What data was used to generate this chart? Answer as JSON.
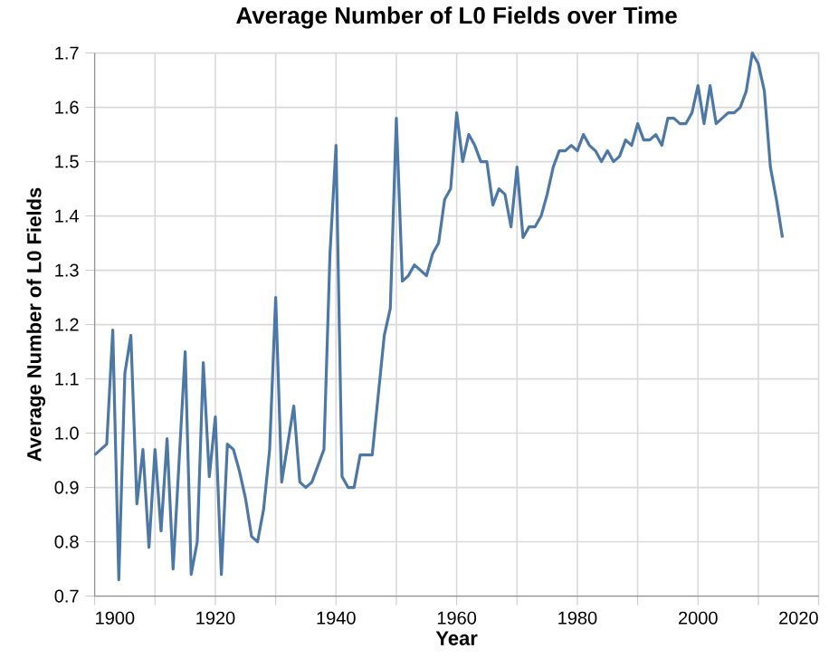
{
  "chart_data": {
    "type": "line",
    "title": "Average Number of L0 Fields over Time",
    "xlabel": "Year",
    "ylabel": "Average Number of L0 Fields",
    "x": [
      1900,
      1901,
      1902,
      1903,
      1904,
      1905,
      1906,
      1907,
      1908,
      1909,
      1910,
      1911,
      1912,
      1913,
      1914,
      1915,
      1916,
      1917,
      1918,
      1919,
      1920,
      1921,
      1922,
      1923,
      1924,
      1925,
      1926,
      1927,
      1928,
      1929,
      1930,
      1931,
      1932,
      1933,
      1934,
      1935,
      1936,
      1937,
      1938,
      1939,
      1940,
      1941,
      1942,
      1943,
      1944,
      1945,
      1946,
      1947,
      1948,
      1949,
      1950,
      1951,
      1952,
      1953,
      1954,
      1955,
      1956,
      1957,
      1958,
      1959,
      1960,
      1961,
      1962,
      1963,
      1964,
      1965,
      1966,
      1967,
      1968,
      1969,
      1970,
      1971,
      1972,
      1973,
      1974,
      1975,
      1976,
      1977,
      1978,
      1979,
      1980,
      1981,
      1982,
      1983,
      1984,
      1985,
      1986,
      1987,
      1988,
      1989,
      1990,
      1991,
      1992,
      1993,
      1994,
      1995,
      1996,
      1997,
      1998,
      1999,
      2000,
      2001,
      2002,
      2003,
      2004,
      2005,
      2006,
      2007,
      2008,
      2009,
      2010,
      2011,
      2012,
      2013,
      2014
    ],
    "series": [
      {
        "color": "#4c78a8",
        "values": [
          0.96,
          0.97,
          0.98,
          1.19,
          0.73,
          1.11,
          1.18,
          0.87,
          0.97,
          0.79,
          0.97,
          0.82,
          0.99,
          0.75,
          0.95,
          1.15,
          0.74,
          0.8,
          1.13,
          0.92,
          1.03,
          0.74,
          0.98,
          0.97,
          0.93,
          0.88,
          0.81,
          0.8,
          0.86,
          0.97,
          1.25,
          0.91,
          0.98,
          1.05,
          0.91,
          0.9,
          0.91,
          0.94,
          0.97,
          1.33,
          1.53,
          0.92,
          0.9,
          0.9,
          0.96,
          0.96,
          0.96,
          1.07,
          1.18,
          1.23,
          1.58,
          1.28,
          1.29,
          1.31,
          1.3,
          1.29,
          1.33,
          1.35,
          1.43,
          1.45,
          1.59,
          1.5,
          1.55,
          1.53,
          1.5,
          1.5,
          1.42,
          1.45,
          1.44,
          1.38,
          1.49,
          1.36,
          1.38,
          1.38,
          1.4,
          1.44,
          1.49,
          1.52,
          1.52,
          1.53,
          1.52,
          1.55,
          1.53,
          1.52,
          1.5,
          1.52,
          1.5,
          1.51,
          1.54,
          1.53,
          1.57,
          1.54,
          1.54,
          1.55,
          1.53,
          1.58,
          1.58,
          1.57,
          1.57,
          1.59,
          1.64,
          1.57,
          1.64,
          1.57,
          1.58,
          1.59,
          1.59,
          1.6,
          1.63,
          1.7,
          1.68,
          1.63,
          1.49,
          1.43,
          1.36
        ]
      }
    ],
    "xlim": [
      1900,
      2020
    ],
    "xticks": [
      1900,
      {
        "value": 1910,
        "label": null
      },
      1920,
      {
        "value": 1930,
        "label": null
      },
      1940,
      {
        "value": 1950,
        "label": null
      },
      1960,
      {
        "value": 1970,
        "label": null
      },
      1980,
      {
        "value": 1990,
        "label": null
      },
      2000,
      {
        "value": 2010,
        "label": null
      },
      2020
    ],
    "ylim": [
      0.7,
      1.7
    ],
    "yticks": [
      0.7,
      0.8,
      0.9,
      {
        "value": 1,
        "label": "1.0"
      },
      1.1,
      1.2,
      1.3,
      1.4,
      1.5,
      1.6,
      1.7
    ],
    "grid": true,
    "marker": "none",
    "line_style": "solid"
  }
}
